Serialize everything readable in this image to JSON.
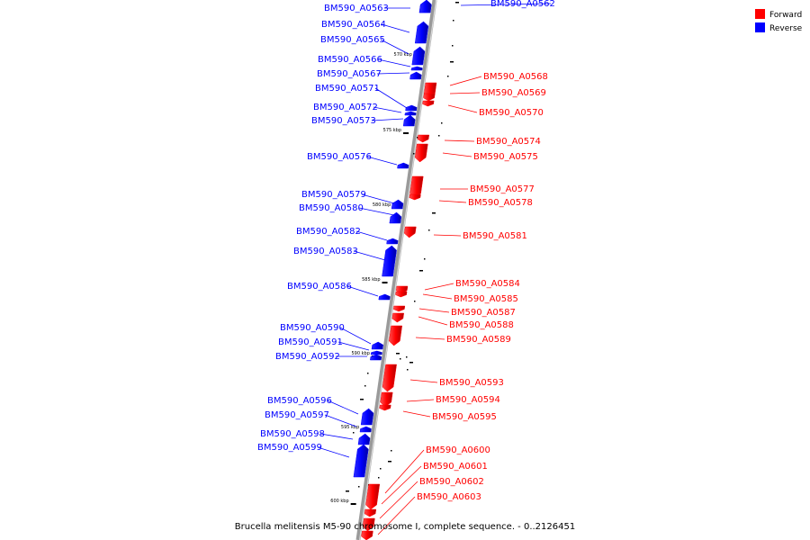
{
  "caption": "Brucella melitensis M5-90 chromosome I, complete sequence. - 0..2126451",
  "legend": {
    "forward": {
      "label": "Forward",
      "color": "#ff0000"
    },
    "reverse": {
      "label": "Reverse",
      "color": "#0000ff"
    }
  },
  "ticks": [
    "570 kbp",
    "575 kbp",
    "580 kbp",
    "585 kbp",
    "590 kbp",
    "595 kbp",
    "600 kbp"
  ],
  "genes": [
    {
      "name": "BM590_A0562",
      "strand": "reverse"
    },
    {
      "name": "BM590_A0563",
      "strand": "reverse"
    },
    {
      "name": "BM590_A0564",
      "strand": "reverse"
    },
    {
      "name": "BM590_A0565",
      "strand": "reverse"
    },
    {
      "name": "BM590_A0566",
      "strand": "reverse"
    },
    {
      "name": "BM590_A0567",
      "strand": "reverse"
    },
    {
      "name": "BM590_A0568",
      "strand": "forward"
    },
    {
      "name": "BM590_A0569",
      "strand": "forward"
    },
    {
      "name": "BM590_A0570",
      "strand": "forward"
    },
    {
      "name": "BM590_A0571",
      "strand": "reverse"
    },
    {
      "name": "BM590_A0572",
      "strand": "reverse"
    },
    {
      "name": "BM590_A0573",
      "strand": "reverse"
    },
    {
      "name": "BM590_A0574",
      "strand": "forward"
    },
    {
      "name": "BM590_A0575",
      "strand": "forward"
    },
    {
      "name": "BM590_A0576",
      "strand": "reverse"
    },
    {
      "name": "BM590_A0577",
      "strand": "forward"
    },
    {
      "name": "BM590_A0578",
      "strand": "forward"
    },
    {
      "name": "BM590_A0579",
      "strand": "reverse"
    },
    {
      "name": "BM590_A0580",
      "strand": "reverse"
    },
    {
      "name": "BM590_A0581",
      "strand": "forward"
    },
    {
      "name": "BM590_A0582",
      "strand": "reverse"
    },
    {
      "name": "BM590_A0583",
      "strand": "reverse"
    },
    {
      "name": "BM590_A0584",
      "strand": "forward"
    },
    {
      "name": "BM590_A0585",
      "strand": "forward"
    },
    {
      "name": "BM590_A0586",
      "strand": "reverse"
    },
    {
      "name": "BM590_A0587",
      "strand": "forward"
    },
    {
      "name": "BM590_A0588",
      "strand": "forward"
    },
    {
      "name": "BM590_A0589",
      "strand": "forward"
    },
    {
      "name": "BM590_A0590",
      "strand": "reverse"
    },
    {
      "name": "BM590_A0591",
      "strand": "reverse"
    },
    {
      "name": "BM590_A0592",
      "strand": "reverse"
    },
    {
      "name": "BM590_A0593",
      "strand": "forward"
    },
    {
      "name": "BM590_A0594",
      "strand": "forward"
    },
    {
      "name": "BM590_A0595",
      "strand": "forward"
    },
    {
      "name": "BM590_A0596",
      "strand": "reverse"
    },
    {
      "name": "BM590_A0597",
      "strand": "reverse"
    },
    {
      "name": "BM590_A0598",
      "strand": "reverse"
    },
    {
      "name": "BM590_A0599",
      "strand": "reverse"
    },
    {
      "name": "BM590_A0600",
      "strand": "forward"
    },
    {
      "name": "BM590_A0601",
      "strand": "forward"
    },
    {
      "name": "BM590_A0602",
      "strand": "forward"
    },
    {
      "name": "BM590_A0603",
      "strand": "forward"
    }
  ]
}
